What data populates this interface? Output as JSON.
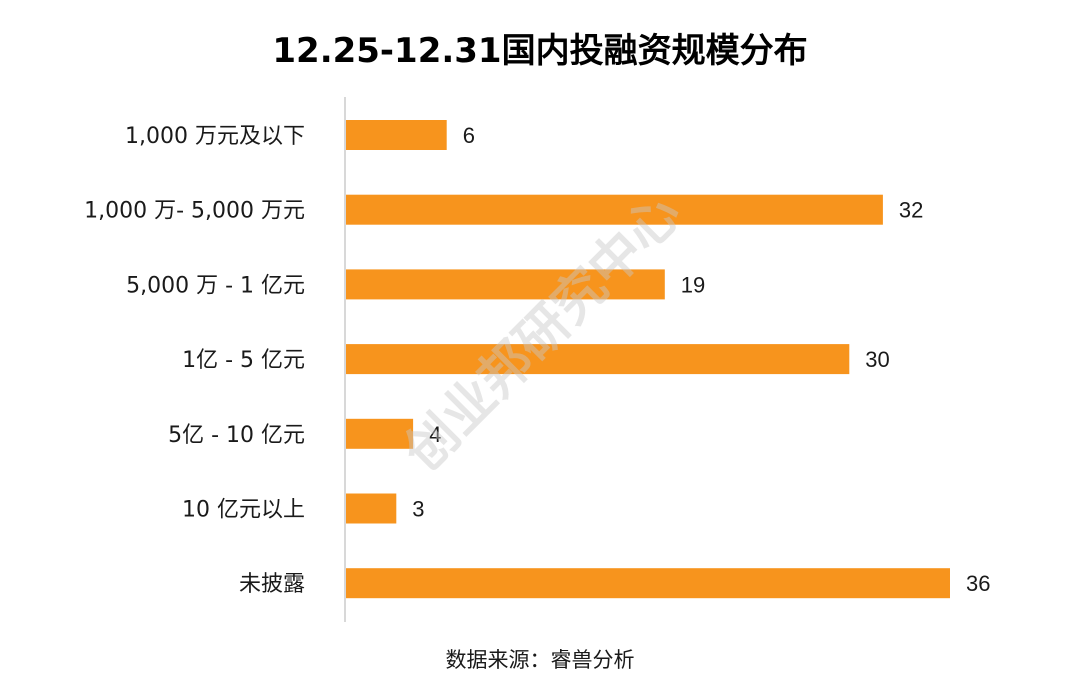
{
  "chart_data": {
    "type": "bar",
    "orientation": "horizontal",
    "title": "12.25-12.31国内投融资规模分布",
    "categories": [
      "1,000 万元及以下",
      "1,000 万- 5,000 万元",
      "5,000 万 - 1 亿元",
      "1亿 - 5 亿元",
      "5亿 - 10 亿元",
      "10 亿元以上",
      "未披露"
    ],
    "values": [
      6,
      32,
      19,
      30,
      4,
      3,
      36
    ],
    "xlim": [
      0,
      40
    ],
    "grid": false,
    "data_labels": true,
    "bar_color": "#f7941d",
    "axis_color": "#cccccc"
  },
  "source": "数据来源：睿兽分析",
  "watermark": "创业邦研究中心"
}
